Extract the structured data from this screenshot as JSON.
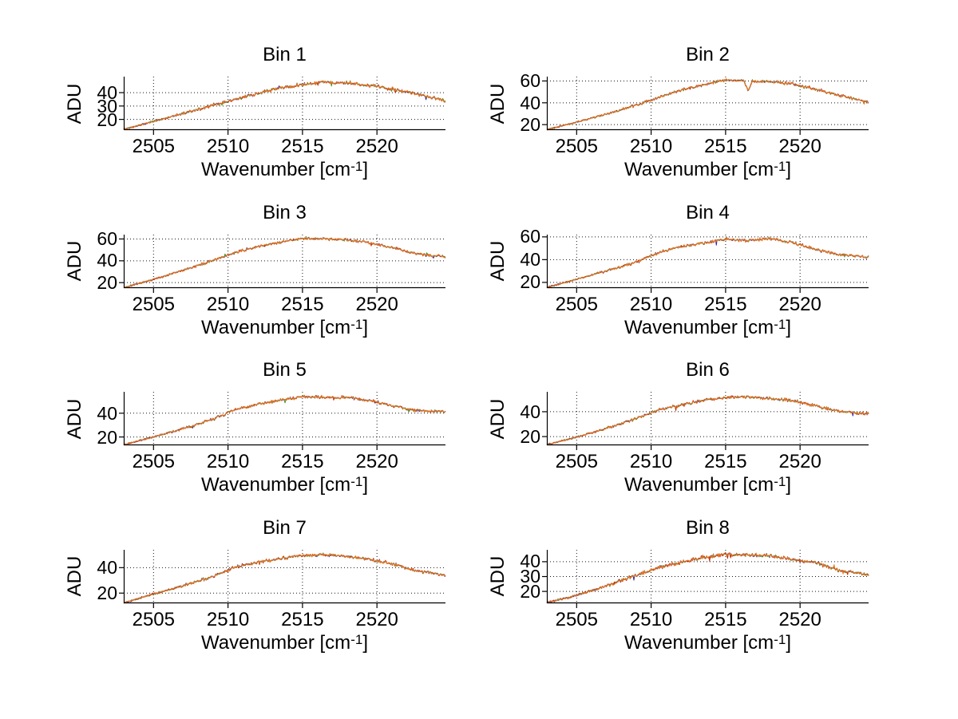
{
  "figure": {
    "background": "#ffffff",
    "rows": 4,
    "cols": 2
  },
  "labels": {
    "ylabel": "ADU",
    "xlabel_main": "Wavenumber [cm",
    "xlabel_sup": "-1",
    "xlabel_close": "]"
  },
  "colors": {
    "axis": "#000000",
    "grid": "#161616",
    "line_blue": "#2525aa",
    "line_green": "#2f9d2f",
    "line_red": "#c52d05",
    "line_orange": "#e8751e"
  },
  "chart_data": [
    {
      "type": "line",
      "title": "Bin 1",
      "xlabel": "Wavenumber [cm^-1]",
      "ylabel": "ADU",
      "xlim": [
        2503,
        2524.6
      ],
      "ylim": [
        12,
        52
      ],
      "xticks": [
        2505,
        2510,
        2515,
        2520
      ],
      "yticks": [
        20,
        30,
        40
      ],
      "grid": true,
      "x": [
        2503,
        2504.5,
        2506,
        2507.5,
        2509,
        2510.5,
        2512,
        2513.5,
        2515,
        2516.5,
        2518,
        2519.5,
        2521,
        2522.5,
        2524.6
      ],
      "y": [
        12.5,
        17,
        21.5,
        26,
        30.5,
        35,
        39.5,
        43.5,
        46,
        48,
        47.5,
        45.5,
        43,
        39.5,
        33.5
      ],
      "noise_amp": 1.3
    },
    {
      "type": "line",
      "title": "Bin 2",
      "xlabel": "Wavenumber [cm^-1]",
      "ylabel": "ADU",
      "xlim": [
        2503,
        2524.6
      ],
      "ylim": [
        15,
        64
      ],
      "xticks": [
        2505,
        2510,
        2515,
        2520
      ],
      "yticks": [
        20,
        40,
        60
      ],
      "grid": true,
      "x": [
        2503,
        2504.5,
        2506,
        2507.5,
        2509,
        2510.5,
        2512,
        2513.5,
        2515,
        2516.2,
        2516.5,
        2516.8,
        2518,
        2519.5,
        2521,
        2522.5,
        2524.6
      ],
      "y": [
        15.5,
        20.5,
        26,
        31.5,
        38,
        45,
        51.5,
        56.5,
        61,
        60.5,
        50.5,
        59.5,
        59.5,
        57,
        52.5,
        47,
        40.5
      ],
      "noise_amp": 1.4
    },
    {
      "type": "line",
      "title": "Bin 3",
      "xlabel": "Wavenumber [cm^-1]",
      "ylabel": "ADU",
      "xlim": [
        2503,
        2524.6
      ],
      "ylim": [
        15,
        64
      ],
      "xticks": [
        2505,
        2510,
        2515,
        2520
      ],
      "yticks": [
        20,
        40,
        60
      ],
      "grid": true,
      "x": [
        2503,
        2504.5,
        2506,
        2507.5,
        2509,
        2510.5,
        2512,
        2513.5,
        2515,
        2516.5,
        2518,
        2519.5,
        2521,
        2522.5,
        2524.6
      ],
      "y": [
        15.5,
        21,
        27,
        33.5,
        40.5,
        47.5,
        53,
        57,
        60.5,
        60,
        59,
        56.5,
        52,
        47,
        43.5
      ],
      "noise_amp": 1.4
    },
    {
      "type": "line",
      "title": "Bin 4",
      "xlabel": "Wavenumber [cm^-1]",
      "ylabel": "ADU",
      "xlim": [
        2503,
        2524.6
      ],
      "ylim": [
        15,
        62
      ],
      "xticks": [
        2505,
        2510,
        2515,
        2520
      ],
      "yticks": [
        20,
        40,
        60
      ],
      "grid": true,
      "x": [
        2503,
        2504.5,
        2506,
        2507.5,
        2509,
        2510.5,
        2512,
        2513.5,
        2515,
        2516.5,
        2518,
        2519.5,
        2521,
        2522.5,
        2524.6
      ],
      "y": [
        15.5,
        21,
        26.5,
        32,
        38,
        46,
        51.5,
        54.5,
        58,
        56.5,
        58.5,
        55,
        49.5,
        44.5,
        42
      ],
      "noise_amp": 1.4
    },
    {
      "type": "line",
      "title": "Bin 5",
      "xlabel": "Wavenumber [cm^-1]",
      "ylabel": "ADU",
      "xlim": [
        2503,
        2524.6
      ],
      "ylim": [
        13,
        58
      ],
      "xticks": [
        2505,
        2510,
        2515,
        2520
      ],
      "yticks": [
        20,
        40
      ],
      "grid": true,
      "x": [
        2503,
        2504.5,
        2506,
        2507.5,
        2509,
        2510.5,
        2512,
        2513.5,
        2515,
        2516.5,
        2518,
        2519.5,
        2521,
        2522.5,
        2524.6
      ],
      "y": [
        13.5,
        18.5,
        23.5,
        29,
        35,
        43,
        47.5,
        51,
        54,
        53.5,
        53,
        50.5,
        46.5,
        42.5,
        41
      ],
      "noise_amp": 1.3
    },
    {
      "type": "line",
      "title": "Bin 6",
      "xlabel": "Wavenumber [cm^-1]",
      "ylabel": "ADU",
      "xlim": [
        2503,
        2524.6
      ],
      "ylim": [
        13,
        56
      ],
      "xticks": [
        2505,
        2510,
        2515,
        2520
      ],
      "yticks": [
        20,
        40
      ],
      "grid": true,
      "x": [
        2503,
        2504.5,
        2506,
        2507.5,
        2509,
        2510.5,
        2512,
        2513.5,
        2515,
        2516.5,
        2518,
        2519.5,
        2521,
        2522.5,
        2524.6
      ],
      "y": [
        13.5,
        18,
        23,
        28.5,
        34.5,
        41.5,
        45.5,
        49,
        51.5,
        52,
        50.5,
        49,
        45,
        40.5,
        38
      ],
      "noise_amp": 1.3
    },
    {
      "type": "line",
      "title": "Bin 7",
      "xlabel": "Wavenumber [cm^-1]",
      "ylabel": "ADU",
      "xlim": [
        2503,
        2524.6
      ],
      "ylim": [
        12,
        54
      ],
      "xticks": [
        2505,
        2510,
        2515,
        2520
      ],
      "yticks": [
        20,
        40
      ],
      "grid": true,
      "x": [
        2503,
        2504.5,
        2506,
        2507.5,
        2509,
        2510.5,
        2512,
        2513.5,
        2515,
        2516.5,
        2518,
        2519.5,
        2521,
        2522.5,
        2524.6
      ],
      "y": [
        12.5,
        17.5,
        22.5,
        27.5,
        33,
        40.5,
        44,
        47,
        49.5,
        50,
        49,
        46.5,
        43,
        38,
        34
      ],
      "noise_amp": 1.3
    },
    {
      "type": "line",
      "title": "Bin 8",
      "xlabel": "Wavenumber [cm^-1]",
      "ylabel": "ADU",
      "xlim": [
        2503,
        2524.6
      ],
      "ylim": [
        12,
        48
      ],
      "xticks": [
        2505,
        2510,
        2515,
        2520
      ],
      "yticks": [
        20,
        30,
        40
      ],
      "grid": true,
      "x": [
        2503,
        2504.5,
        2506,
        2507.5,
        2509,
        2510.5,
        2512,
        2513.5,
        2515,
        2516.5,
        2518,
        2519.5,
        2521,
        2522.5,
        2524.6
      ],
      "y": [
        12.5,
        16,
        20.5,
        25.5,
        31,
        36,
        39.5,
        43,
        45,
        44.5,
        44,
        41.5,
        39.5,
        34.5,
        31
      ],
      "noise_amp": 1.2
    }
  ]
}
